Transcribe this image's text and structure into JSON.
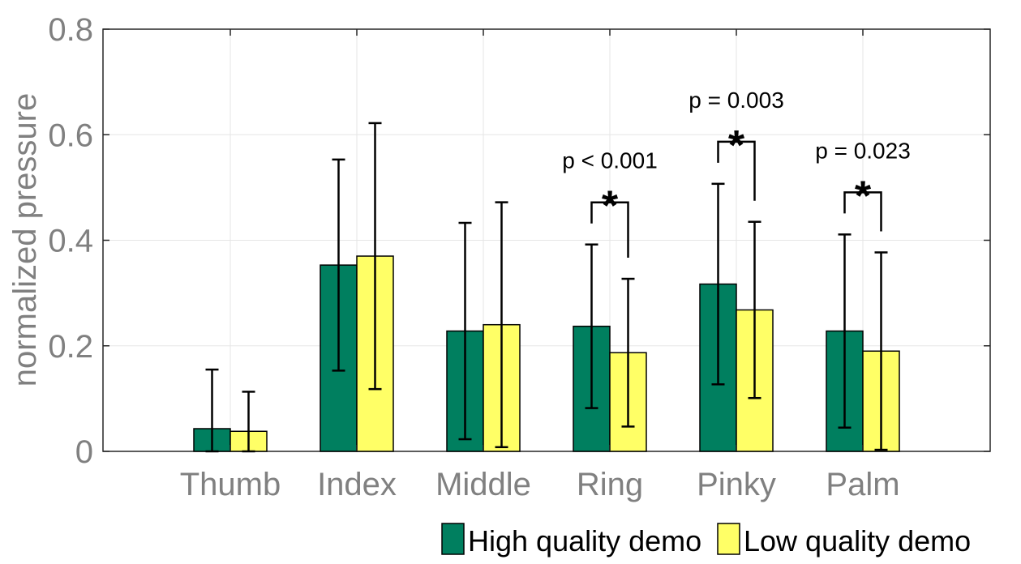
{
  "chart_data": {
    "type": "bar",
    "title": "",
    "xlabel": "",
    "ylabel": "normalized pressure",
    "ylim": [
      0,
      0.8
    ],
    "yticks": [
      "0",
      "0.2",
      "0.4",
      "0.6",
      "0.8"
    ],
    "ytick_values": [
      0,
      0.2,
      0.4,
      0.6,
      0.8
    ],
    "grid": true,
    "legend_position": "bottom-right",
    "categories": [
      "Thumb",
      "Index",
      "Middle",
      "Ring",
      "Pinky",
      "Palm"
    ],
    "series": [
      {
        "name": "High quality demo",
        "color": "#007f5f",
        "values": [
          0.043,
          0.353,
          0.228,
          0.237,
          0.317,
          0.228
        ],
        "error": [
          0.112,
          0.2,
          0.205,
          0.155,
          0.19,
          0.183
        ]
      },
      {
        "name": "Low quality demo",
        "color": "#ffff66",
        "values": [
          0.038,
          0.37,
          0.24,
          0.187,
          0.268,
          0.19
        ],
        "error": [
          0.075,
          0.252,
          0.232,
          0.14,
          0.167,
          0.187
        ]
      }
    ],
    "annotations": [
      {
        "category": "Ring",
        "text": "p < 0.001",
        "star": "*"
      },
      {
        "category": "Pinky",
        "text": "p = 0.003",
        "star": "*"
      },
      {
        "category": "Palm",
        "text": "p = 0.023",
        "star": "*"
      }
    ]
  }
}
